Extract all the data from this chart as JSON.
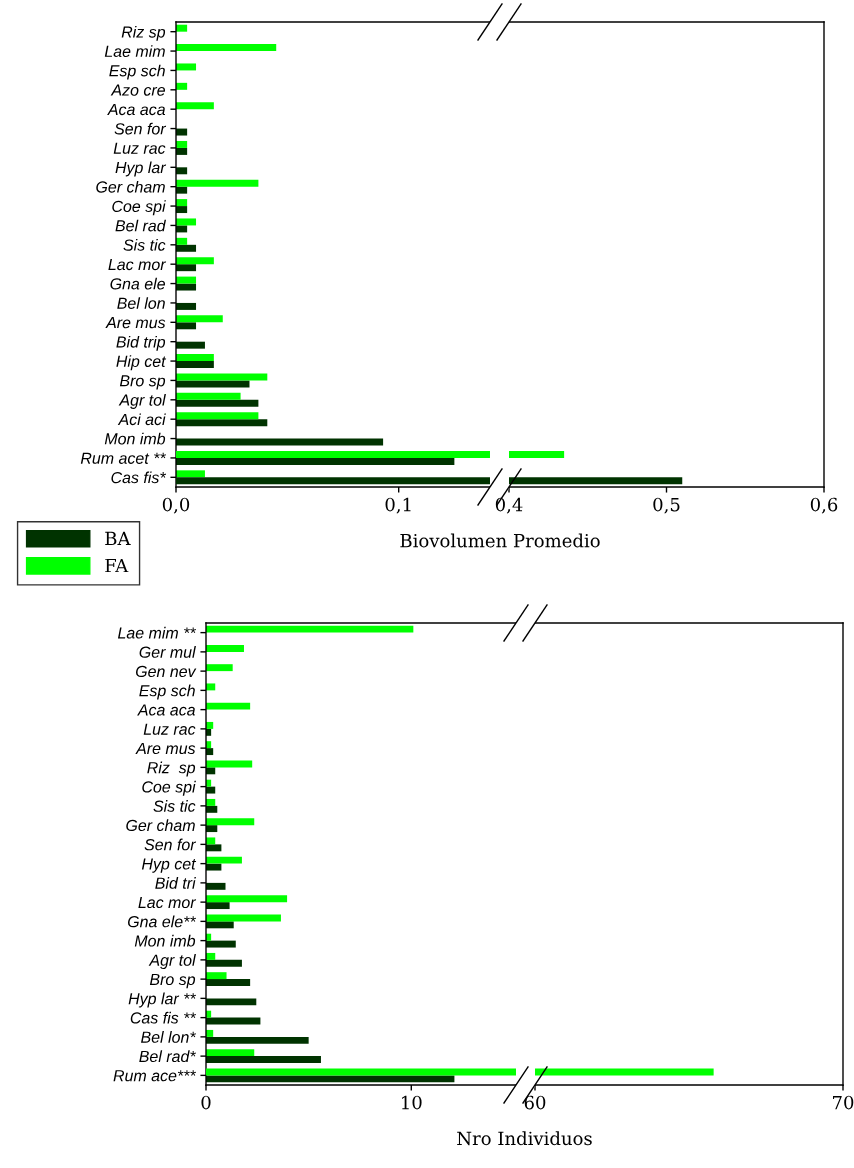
{
  "chart_data": [
    {
      "type": "bar",
      "orientation": "horizontal",
      "xlabel": "Biovolumen Promedio",
      "legend": "bottom left",
      "grid": false,
      "categories": [
        "Riz sp",
        "Lae mim",
        "Esp sch",
        "Azo cre",
        "Aca aca",
        "Sen for",
        "Luz rac",
        "Hyp lar",
        "Ger cham",
        "Coe spi",
        "Bel rad",
        "Sis tic",
        "Lac mor",
        "Gna ele",
        "Bel lon",
        "Are mus",
        "Bid trip",
        "Hip cet",
        "Bro sp",
        "Agr tol",
        "Aci aci",
        "Mon imb",
        "Rum acet **",
        "Cas fis*"
      ],
      "series": [
        {
          "name": "BA",
          "color": "#003300",
          "values": [
            0,
            0,
            0,
            0,
            0,
            0.005,
            0.005,
            0.005,
            0.005,
            0.005,
            0.005,
            0.009,
            0.009,
            0.009,
            0.009,
            0.009,
            0.013,
            0.017,
            0.033,
            0.037,
            0.041,
            0.093,
            0.125,
            null
          ]
        },
        {
          "name": "FA",
          "color": "#00ff00",
          "values": [
            0.005,
            0.045,
            0.009,
            0.005,
            0.017,
            0,
            0.005,
            0,
            0.037,
            0.005,
            0.009,
            0.005,
            0.017,
            0.009,
            0,
            0.021,
            0,
            0.017,
            0.041,
            0.029,
            0.037,
            0,
            null,
            0.013
          ]
        }
      ],
      "xlim": [
        0,
        0.141
      ],
      "xticks": [
        {
          "value": 0,
          "label": "0,0"
        },
        {
          "value": 0.1,
          "label": "0,1"
        }
      ]
    },
    {
      "type": "bar",
      "orientation": "horizontal",
      "grid": false,
      "tick_labels": "x",
      "categories": [
        null,
        null,
        null,
        null,
        null,
        null,
        null,
        null,
        null,
        null,
        null,
        null,
        null,
        null,
        null,
        null,
        null,
        null,
        null,
        null,
        null,
        null,
        null,
        null
      ],
      "series": [
        {
          "color": "#003300",
          "values": [
            null,
            null,
            null,
            null,
            null,
            null,
            null,
            null,
            null,
            null,
            null,
            null,
            null,
            null,
            null,
            null,
            null,
            null,
            null,
            null,
            null,
            null,
            null,
            0.51
          ]
        },
        {
          "color": "#00ff00",
          "values": [
            null,
            null,
            null,
            null,
            null,
            null,
            null,
            null,
            null,
            null,
            null,
            null,
            null,
            null,
            null,
            null,
            null,
            null,
            null,
            null,
            null,
            null,
            0.435,
            null
          ]
        }
      ],
      "xlim": [
        0.4,
        0.6
      ],
      "xticks": [
        {
          "value": 0.4,
          "label": "0,4"
        },
        {
          "value": 0.5,
          "label": "0,5"
        },
        {
          "value": 0.6,
          "label": "0,6"
        }
      ]
    },
    {
      "type": "bar",
      "orientation": "horizontal",
      "xlabel": "Nro Individuos",
      "grid": false,
      "categories": [
        "Lae mim **",
        "Ger mul",
        "Gen nev",
        "Esp sch",
        "Aca aca",
        "Luz rac",
        "Are mus",
        "Riz  sp",
        "Coe spi",
        "Sis tic",
        "Ger cham",
        "Sen for",
        "Hyp cet",
        "Bid tri",
        "Lac mor",
        "Gna ele**",
        "Mon imb",
        "Agr tol",
        "Bro sp",
        "Hyp lar **",
        "Cas fis **",
        "Bel lon*",
        "Bel rad*",
        "Rum ace***"
      ],
      "series": [
        {
          "color": "#003300",
          "values": [
            0,
            0,
            0,
            0,
            0,
            0.25,
            0.35,
            0.45,
            0.45,
            0.55,
            0.55,
            0.75,
            0.75,
            0.95,
            1.15,
            1.35,
            1.45,
            1.75,
            2.15,
            2.45,
            2.65,
            5.0,
            5.6,
            12.1
          ]
        },
        {
          "color": "#00ff00",
          "values": [
            10.1,
            1.85,
            1.3,
            0.45,
            2.15,
            0.35,
            0.25,
            2.25,
            0.25,
            0.45,
            2.35,
            0.45,
            1.75,
            0,
            3.95,
            3.65,
            0.25,
            0.45,
            1.0,
            0,
            0.25,
            0.35,
            2.35,
            null
          ]
        }
      ],
      "xlim": [
        0,
        15.1
      ],
      "xticks": [
        0,
        10
      ]
    },
    {
      "type": "bar",
      "orientation": "horizontal",
      "grid": false,
      "tick_labels": "x",
      "categories": [
        null,
        null,
        null,
        null,
        null,
        null,
        null,
        null,
        null,
        null,
        null,
        null,
        null,
        null,
        null,
        null,
        null,
        null,
        null,
        null,
        null,
        null,
        null,
        null
      ],
      "series": [
        {
          "color": "#003300",
          "values": [
            null,
            null,
            null,
            null,
            null,
            null,
            null,
            null,
            null,
            null,
            null,
            null,
            null,
            null,
            null,
            null,
            null,
            null,
            null,
            null,
            null,
            null,
            null,
            null
          ]
        },
        {
          "color": "#00ff00",
          "values": [
            null,
            null,
            null,
            null,
            null,
            null,
            null,
            null,
            null,
            null,
            null,
            null,
            null,
            null,
            null,
            null,
            null,
            null,
            null,
            null,
            null,
            null,
            null,
            65.8
          ]
        }
      ],
      "xlim": [
        60,
        70
      ],
      "xticks": [
        60,
        70
      ]
    }
  ]
}
